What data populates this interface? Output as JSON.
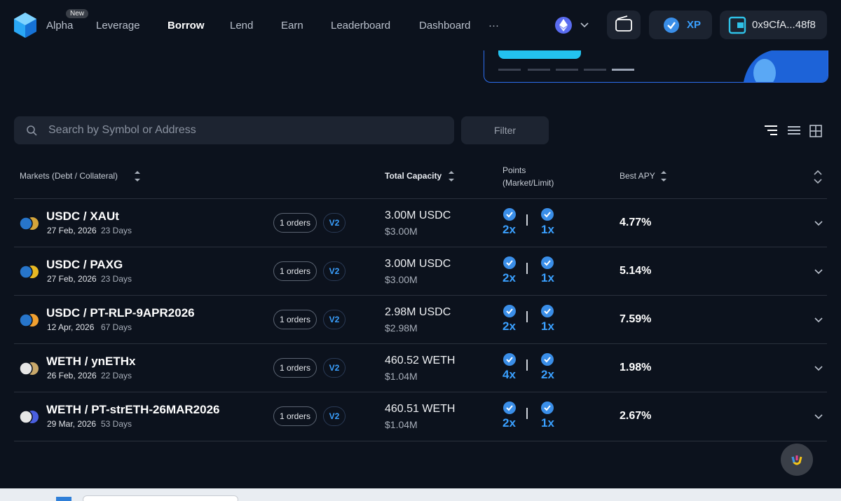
{
  "nav": {
    "items": [
      "Alpha",
      "Leverage",
      "Borrow",
      "Lend",
      "Earn",
      "Leaderboard",
      "Dashboard",
      "···"
    ],
    "badge": "New",
    "active": "Borrow",
    "xp": "XP",
    "wallet": "0x9CfA...48f8"
  },
  "search": {
    "placeholder": "Search by Symbol or Address",
    "filter": "Filter"
  },
  "table": {
    "headers": {
      "market": "Markets (Debt / Collateral)",
      "capacity": "Total Capacity",
      "points": "Points",
      "points_sub": "(Market/Limit)",
      "apy": "Best APY"
    },
    "rows": [
      {
        "market": "USDC / XAUt",
        "date": "27 Feb, 2026",
        "days": "23 Days",
        "orders": "1 orders",
        "version": "V2",
        "capacity": "3.00M USDC",
        "capacity_usd": "$3.00M",
        "points_market": "2x",
        "points_limit": "1x",
        "apy": "4.77%"
      },
      {
        "market": "USDC / PAXG",
        "date": "27 Feb, 2026",
        "days": "23 Days",
        "orders": "1 orders",
        "version": "V2",
        "capacity": "3.00M USDC",
        "capacity_usd": "$3.00M",
        "points_market": "2x",
        "points_limit": "1x",
        "apy": "5.14%"
      },
      {
        "market": "USDC / PT-RLP-9APR2026",
        "date": "12 Apr, 2026",
        "days": "67 Days",
        "orders": "1 orders",
        "version": "V2",
        "capacity": "2.98M USDC",
        "capacity_usd": "$2.98M",
        "points_market": "2x",
        "points_limit": "1x",
        "apy": "7.59%"
      },
      {
        "market": "WETH / ynETHx",
        "date": "26 Feb, 2026",
        "days": "22 Days",
        "orders": "1 orders",
        "version": "V2",
        "capacity": "460.52 WETH",
        "capacity_usd": "$1.04M",
        "points_market": "4x",
        "points_limit": "2x",
        "apy": "1.98%"
      },
      {
        "market": "WETH / PT-strETH-26MAR2026",
        "date": "29 Mar, 2026",
        "days": "53 Days",
        "orders": "1 orders",
        "version": "V2",
        "capacity": "460.51 WETH",
        "capacity_usd": "$1.04M",
        "points_market": "2x",
        "points_limit": "1x",
        "apy": "2.67%"
      }
    ]
  }
}
